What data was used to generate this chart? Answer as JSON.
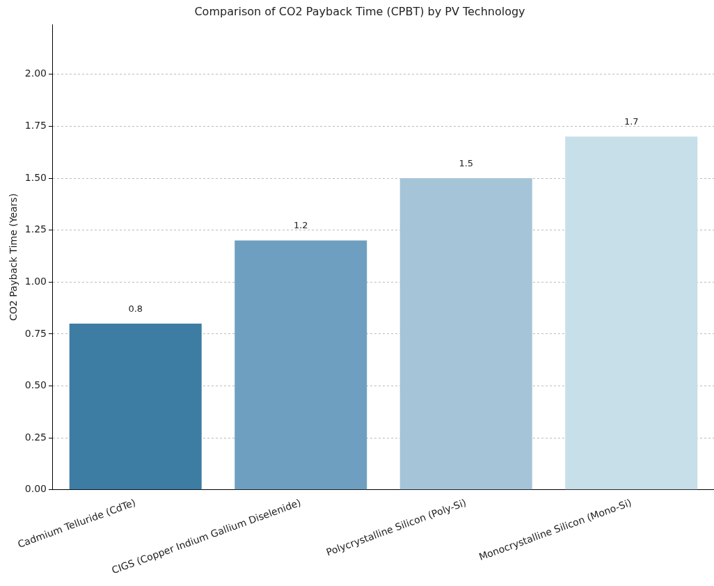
{
  "chart_data": {
    "type": "bar",
    "title": "Comparison of CO2 Payback Time (CPBT) by PV Technology",
    "ylabel": "CO2 Payback Time (Years)",
    "categories": [
      "Cadmium Telluride (CdTe)",
      "CIGS (Copper Indium Gallium Diselenide)",
      "Polycrystalline Silicon (Poly-Si)",
      "Monocrystalline Silicon (Mono-Si)"
    ],
    "values": [
      0.8,
      1.2,
      1.5,
      1.7
    ],
    "colors": [
      "#3d7ca3",
      "#6f9fc0",
      "#a5c4d8",
      "#c6dfe9"
    ],
    "ylim": [
      0,
      2.24
    ],
    "yticks": [
      {
        "value": 0,
        "label": "0.00"
      },
      {
        "value": 0.25,
        "label": "0.25"
      },
      {
        "value": 0.5,
        "label": "0.50"
      },
      {
        "value": 0.75,
        "label": "0.75"
      },
      {
        "value": 1,
        "label": "1.00"
      },
      {
        "value": 1.25,
        "label": "1.25"
      },
      {
        "value": 1.5,
        "label": "1.50"
      },
      {
        "value": 1.75,
        "label": "1.75"
      },
      {
        "value": 2,
        "label": "2.00"
      }
    ],
    "grid": "y",
    "data_labels": true
  }
}
